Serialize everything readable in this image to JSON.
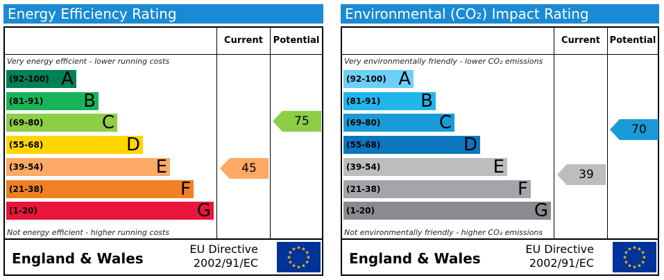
{
  "energy": {
    "title": "Energy Efficiency Rating",
    "col_current": "Current",
    "col_potential": "Potential",
    "top_note": "Very energy efficient - lower running costs",
    "bottom_note": "Not energy efficient - higher running costs",
    "bands": [
      {
        "range": "(92-100)",
        "letter": "A",
        "color": "#008054"
      },
      {
        "range": "(81-91)",
        "letter": "B",
        "color": "#19b459"
      },
      {
        "range": "(69-80)",
        "letter": "C",
        "color": "#8dce46"
      },
      {
        "range": "(55-68)",
        "letter": "D",
        "color": "#ffd500"
      },
      {
        "range": "(39-54)",
        "letter": "E",
        "color": "#fcaa65"
      },
      {
        "range": "(21-38)",
        "letter": "F",
        "color": "#ef8023"
      },
      {
        "range": "(1-20)",
        "letter": "G",
        "color": "#e9153b"
      }
    ],
    "current": {
      "value": "45",
      "color": "#fcaa65"
    },
    "potential": {
      "value": "75",
      "color": "#8dce46"
    },
    "region": "England & Wales",
    "directive_line1": "EU Directive",
    "directive_line2": "2002/91/EC"
  },
  "environment": {
    "title": "Environmental (CO₂) Impact Rating",
    "col_current": "Current",
    "col_potential": "Potential",
    "top_note": "Very environmentally friendly - lower CO₂ emissions",
    "bottom_note": "Not environmentally friendly - higher CO₂ emissions",
    "bands": [
      {
        "range": "(92-100)",
        "letter": "A",
        "color": "#6ecff6"
      },
      {
        "range": "(81-91)",
        "letter": "B",
        "color": "#22b5ec"
      },
      {
        "range": "(69-80)",
        "letter": "C",
        "color": "#1a9ad6"
      },
      {
        "range": "(55-68)",
        "letter": "D",
        "color": "#0c76bf"
      },
      {
        "range": "(39-54)",
        "letter": "E",
        "color": "#bbbdbf"
      },
      {
        "range": "(21-38)",
        "letter": "F",
        "color": "#a3a5a8"
      },
      {
        "range": "(1-20)",
        "letter": "G",
        "color": "#898b8e"
      }
    ],
    "current": {
      "value": "39",
      "color": "#bbbdbf"
    },
    "potential": {
      "value": "70",
      "color": "#1a9ad6"
    },
    "region": "England & Wales",
    "directive_line1": "EU Directive",
    "directive_line2": "2002/91/EC"
  }
}
